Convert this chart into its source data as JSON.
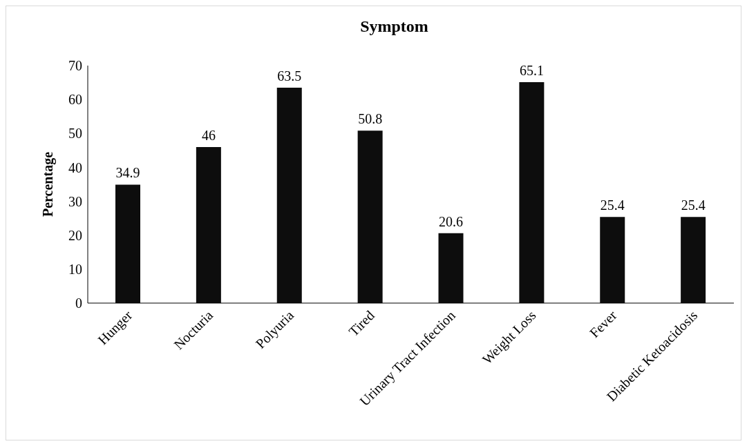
{
  "chart_data": {
    "type": "bar",
    "title": "Symptom",
    "ylabel": "Percentage",
    "categories": [
      "Hunger",
      "Nocturia",
      "Polyuria",
      "Tired",
      "Urinary Tract Infection",
      "Weight Loss",
      "Fever",
      "Diabetic Ketoacidosis"
    ],
    "values": [
      34.9,
      46,
      63.5,
      50.8,
      20.6,
      65.1,
      25.4,
      25.4
    ],
    "color": "#0d0d0d",
    "ylim": [
      0,
      70
    ],
    "yticks": [
      0,
      10,
      20,
      30,
      40,
      50,
      60,
      70
    ],
    "grid": false,
    "data_labels": true
  }
}
